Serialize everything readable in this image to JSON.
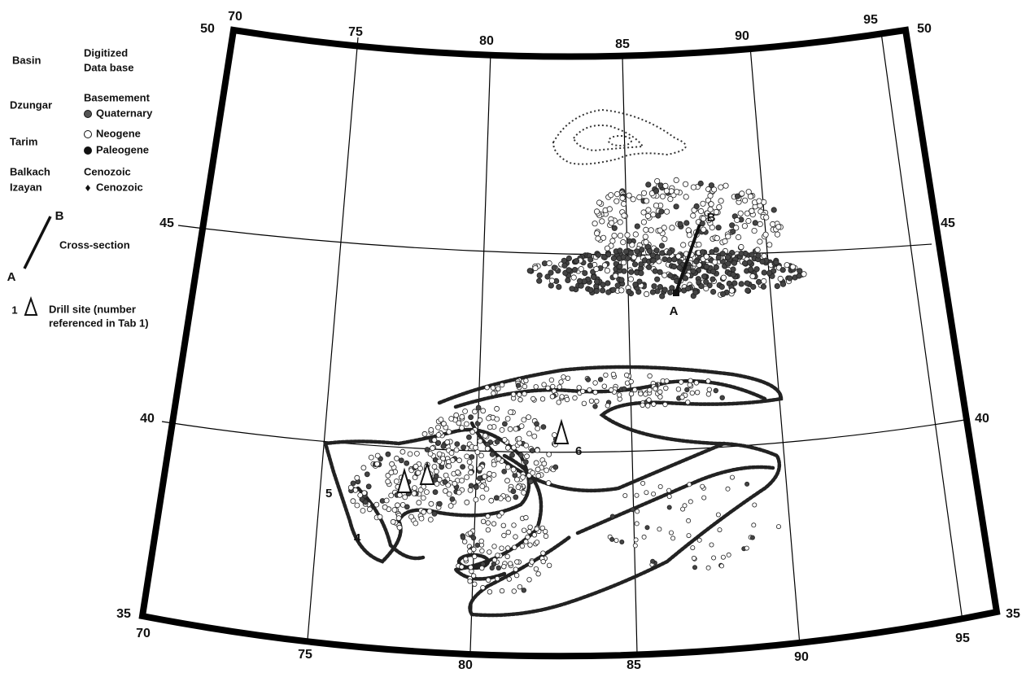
{
  "legend": {
    "col_basin": "Basin",
    "col_database": [
      "Digitized",
      "Data base"
    ],
    "rows": [
      {
        "basin": "Dzungar",
        "items": [
          "Basemement",
          "Quaternary"
        ]
      },
      {
        "basin": "Tarim",
        "items": [
          "Neogene",
          "Paleogene"
        ]
      },
      {
        "basin": "Balkach",
        "items": [
          "Cenozoic"
        ]
      },
      {
        "basin": "Izayan",
        "items": [
          "Cenozoic"
        ]
      }
    ],
    "cross_section": {
      "label": "Cross-section",
      "start": "A",
      "end": "B"
    },
    "drill_site": {
      "number": 1,
      "label": [
        "Drill site (number",
        "referenced in Tab 1)"
      ]
    }
  },
  "graticule": {
    "top": [
      70,
      75,
      80,
      85,
      90,
      95
    ],
    "bottom": [
      70,
      75,
      80,
      85,
      90,
      95
    ],
    "left": [
      50,
      45,
      40,
      35
    ],
    "right": [
      50,
      45,
      40,
      35
    ]
  },
  "map_labels": {
    "section_start": "A",
    "section_end": "B",
    "drill_sites": [
      6,
      5,
      4
    ]
  }
}
